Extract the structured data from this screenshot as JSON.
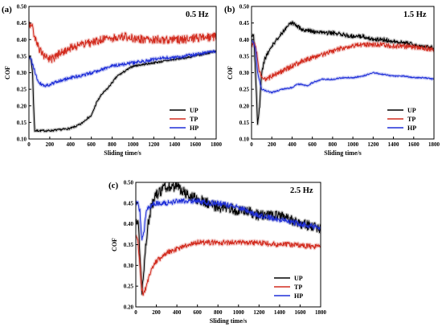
{
  "chart_data": [
    {
      "type": "line",
      "panel_label": "(a)",
      "annotation": "0.5 Hz",
      "xlabel": "Sliding time/s",
      "ylabel": "COF",
      "xlim": [
        0,
        1800
      ],
      "ylim": [
        0.1,
        0.5
      ],
      "xticks": [
        0,
        200,
        400,
        600,
        800,
        1000,
        1200,
        1400,
        1600,
        1800
      ],
      "xtick_labels": [
        "0",
        "200",
        "400",
        "600",
        "800",
        "1000",
        "1200",
        "1400",
        "1600",
        "1800"
      ],
      "yticks": [
        0.1,
        0.15,
        0.2,
        0.25,
        0.3,
        0.35,
        0.4,
        0.45,
        0.5
      ],
      "ytick_labels": [
        "0.10",
        "0.15",
        "0.20",
        "0.25",
        "0.30",
        "0.35",
        "0.40",
        "0.45",
        "0.50"
      ],
      "legend_position": "bottom-right",
      "series": [
        {
          "name": "UP",
          "color": "#000000",
          "noise": 0.003,
          "x": [
            0,
            20,
            35,
            45,
            55,
            100,
            200,
            300,
            400,
            450,
            500,
            550,
            600,
            650,
            700,
            750,
            800,
            850,
            900,
            950,
            1000,
            1100,
            1200,
            1300,
            1400,
            1500,
            1600,
            1700,
            1800
          ],
          "y": [
            0.35,
            0.34,
            0.3,
            0.2,
            0.125,
            0.125,
            0.125,
            0.128,
            0.132,
            0.138,
            0.145,
            0.16,
            0.17,
            0.21,
            0.235,
            0.25,
            0.27,
            0.29,
            0.3,
            0.31,
            0.32,
            0.325,
            0.33,
            0.335,
            0.34,
            0.345,
            0.35,
            0.358,
            0.365
          ]
        },
        {
          "name": "TP",
          "color": "#d22b1e",
          "noise": 0.012,
          "x": [
            0,
            20,
            40,
            60,
            100,
            150,
            200,
            250,
            300,
            400,
            500,
            600,
            700,
            800,
            900,
            1000,
            1100,
            1200,
            1300,
            1400,
            1500,
            1600,
            1700,
            1800
          ],
          "y": [
            0.44,
            0.45,
            0.43,
            0.4,
            0.37,
            0.35,
            0.34,
            0.345,
            0.36,
            0.375,
            0.385,
            0.39,
            0.4,
            0.405,
            0.41,
            0.405,
            0.4,
            0.4,
            0.4,
            0.4,
            0.4,
            0.405,
            0.405,
            0.41
          ]
        },
        {
          "name": "HP",
          "color": "#1f2fd8",
          "noise": 0.005,
          "x": [
            0,
            20,
            40,
            60,
            80,
            100,
            150,
            200,
            300,
            400,
            500,
            600,
            700,
            800,
            900,
            1000,
            1100,
            1200,
            1300,
            1400,
            1500,
            1600,
            1700,
            1800
          ],
          "y": [
            0.345,
            0.34,
            0.32,
            0.3,
            0.28,
            0.27,
            0.26,
            0.265,
            0.275,
            0.285,
            0.29,
            0.3,
            0.31,
            0.32,
            0.325,
            0.33,
            0.335,
            0.34,
            0.345,
            0.345,
            0.35,
            0.355,
            0.36,
            0.365
          ]
        }
      ]
    },
    {
      "type": "line",
      "panel_label": "(b)",
      "annotation": "1.5 Hz",
      "xlabel": "Sliding time/s",
      "ylabel": "COF",
      "xlim": [
        0,
        1800
      ],
      "ylim": [
        0.1,
        0.5
      ],
      "xticks": [
        0,
        200,
        400,
        600,
        800,
        1000,
        1200,
        1400,
        1600,
        1800
      ],
      "xtick_labels": [
        "0",
        "200",
        "400",
        "600",
        "800",
        "1000",
        "1200",
        "1400",
        "1600",
        "1800"
      ],
      "yticks": [
        0.1,
        0.15,
        0.2,
        0.25,
        0.3,
        0.35,
        0.4,
        0.45,
        0.5
      ],
      "ytick_labels": [
        "0.10",
        "0.15",
        "0.20",
        "0.25",
        "0.30",
        "0.35",
        "0.40",
        "0.45",
        "0.50"
      ],
      "legend_position": "bottom-right",
      "series": [
        {
          "name": "UP",
          "color": "#000000",
          "noise": 0.006,
          "x": [
            0,
            20,
            40,
            60,
            80,
            100,
            130,
            160,
            200,
            250,
            300,
            350,
            400,
            450,
            500,
            600,
            700,
            800,
            900,
            1000,
            1100,
            1200,
            1300,
            1400,
            1500,
            1600,
            1700,
            1800
          ],
          "y": [
            0.41,
            0.42,
            0.3,
            0.14,
            0.2,
            0.3,
            0.34,
            0.36,
            0.38,
            0.4,
            0.42,
            0.44,
            0.45,
            0.44,
            0.43,
            0.425,
            0.42,
            0.42,
            0.415,
            0.41,
            0.41,
            0.4,
            0.4,
            0.395,
            0.39,
            0.385,
            0.38,
            0.375
          ]
        },
        {
          "name": "TP",
          "color": "#d22b1e",
          "noise": 0.007,
          "x": [
            0,
            20,
            40,
            60,
            80,
            100,
            150,
            200,
            300,
            400,
            500,
            600,
            700,
            800,
            900,
            1000,
            1100,
            1200,
            1300,
            1400,
            1500,
            1600,
            1700,
            1800
          ],
          "y": [
            0.38,
            0.39,
            0.38,
            0.34,
            0.3,
            0.29,
            0.28,
            0.29,
            0.305,
            0.32,
            0.335,
            0.345,
            0.355,
            0.365,
            0.375,
            0.38,
            0.385,
            0.385,
            0.385,
            0.38,
            0.38,
            0.378,
            0.375,
            0.37
          ]
        },
        {
          "name": "HP",
          "color": "#1f2fd8",
          "noise": 0.002,
          "x": [
            0,
            20,
            40,
            60,
            100,
            150,
            200,
            250,
            300,
            400,
            450,
            500,
            550,
            600,
            650,
            700,
            800,
            900,
            1000,
            1100,
            1200,
            1300,
            1400,
            1500,
            1600,
            1700,
            1800
          ],
          "y": [
            0.4,
            0.39,
            0.37,
            0.3,
            0.25,
            0.245,
            0.24,
            0.245,
            0.25,
            0.255,
            0.265,
            0.265,
            0.26,
            0.27,
            0.275,
            0.28,
            0.28,
            0.285,
            0.285,
            0.29,
            0.3,
            0.295,
            0.29,
            0.29,
            0.285,
            0.285,
            0.28
          ]
        }
      ]
    },
    {
      "type": "line",
      "panel_label": "(c)",
      "annotation": "2.5 Hz",
      "xlabel": "Sliding time/s",
      "ylabel": "COF",
      "xlim": [
        0,
        1800
      ],
      "ylim": [
        0.2,
        0.5
      ],
      "xticks": [
        0,
        200,
        400,
        600,
        800,
        1000,
        1200,
        1400,
        1600,
        1800
      ],
      "xtick_labels": [
        "0",
        "200",
        "400",
        "600",
        "800",
        "1000",
        "1200",
        "1400",
        "1600",
        "1800"
      ],
      "yticks": [
        0.2,
        0.25,
        0.3,
        0.35,
        0.4,
        0.45,
        0.5
      ],
      "ytick_labels": [
        "0.20",
        "0.25",
        "0.30",
        "0.35",
        "0.40",
        "0.45",
        "0.50"
      ],
      "legend_position": "bottom-right",
      "series": [
        {
          "name": "UP",
          "color": "#000000",
          "noise": 0.012,
          "x": [
            0,
            20,
            40,
            50,
            60,
            70,
            80,
            100,
            120,
            150,
            200,
            250,
            300,
            350,
            400,
            500,
            600,
            700,
            800,
            900,
            1000,
            1100,
            1200,
            1300,
            1400,
            1500,
            1600,
            1700,
            1800
          ],
          "y": [
            0.41,
            0.41,
            0.33,
            0.27,
            0.24,
            0.26,
            0.3,
            0.35,
            0.4,
            0.44,
            0.47,
            0.48,
            0.49,
            0.49,
            0.49,
            0.47,
            0.46,
            0.45,
            0.44,
            0.44,
            0.43,
            0.43,
            0.42,
            0.42,
            0.42,
            0.41,
            0.4,
            0.395,
            0.39
          ]
        },
        {
          "name": "TP",
          "color": "#d22b1e",
          "noise": 0.006,
          "x": [
            0,
            20,
            40,
            60,
            80,
            100,
            150,
            200,
            300,
            400,
            500,
            600,
            700,
            800,
            900,
            1000,
            1100,
            1200,
            1300,
            1400,
            1500,
            1600,
            1700,
            1800
          ],
          "y": [
            0.37,
            0.36,
            0.3,
            0.24,
            0.23,
            0.25,
            0.29,
            0.31,
            0.33,
            0.34,
            0.35,
            0.355,
            0.355,
            0.355,
            0.355,
            0.355,
            0.355,
            0.355,
            0.352,
            0.35,
            0.35,
            0.348,
            0.346,
            0.345
          ]
        },
        {
          "name": "HP",
          "color": "#1f2fd8",
          "noise": 0.006,
          "x": [
            0,
            20,
            40,
            50,
            60,
            80,
            100,
            150,
            200,
            250,
            300,
            400,
            500,
            600,
            700,
            800,
            900,
            1000,
            1100,
            1200,
            1300,
            1400,
            1500,
            1600,
            1700,
            1800
          ],
          "y": [
            0.45,
            0.45,
            0.43,
            0.39,
            0.36,
            0.38,
            0.43,
            0.445,
            0.45,
            0.45,
            0.45,
            0.455,
            0.455,
            0.455,
            0.45,
            0.45,
            0.445,
            0.44,
            0.43,
            0.42,
            0.415,
            0.41,
            0.405,
            0.4,
            0.395,
            0.39
          ]
        }
      ]
    }
  ]
}
